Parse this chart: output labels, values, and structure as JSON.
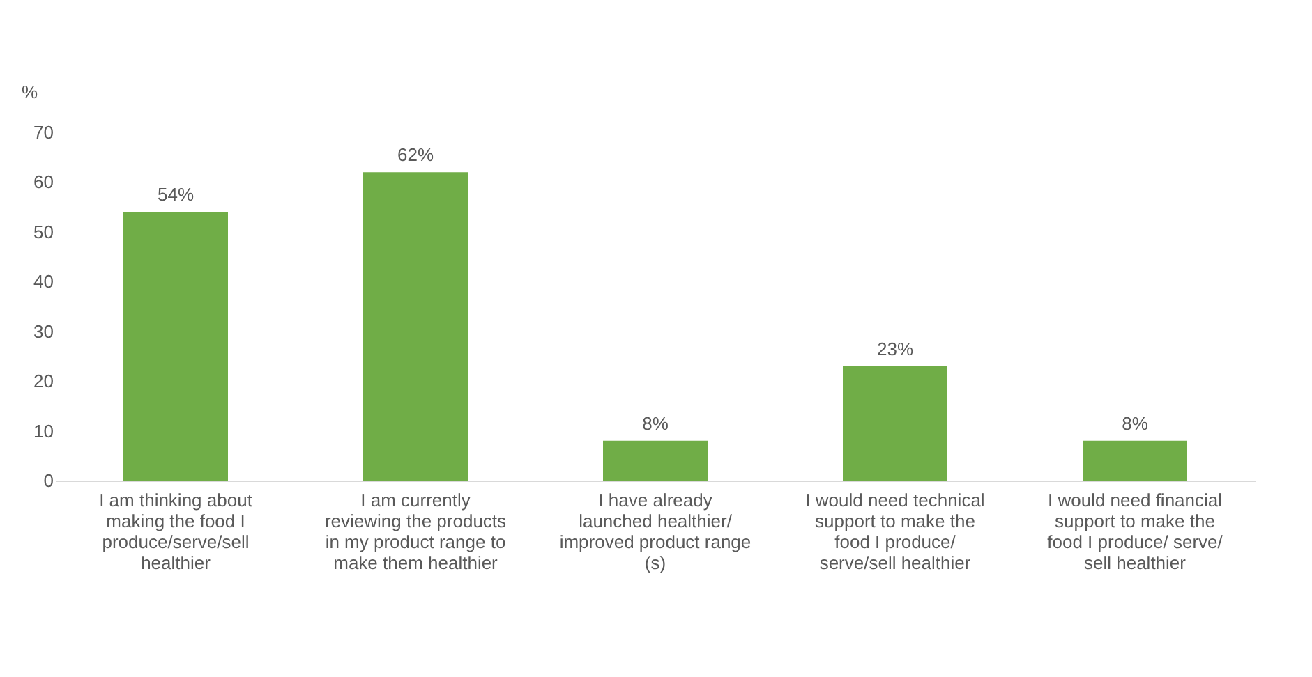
{
  "chart_data": {
    "type": "bar",
    "ylabel": "%",
    "categories": [
      "I am thinking about making the food I produce/serve/sell healthier",
      "I am currently reviewing the products in my product range to make them healthier",
      "I have already launched healthier/ improved product range (s)",
      "I would need technical support to make the food I produce/ serve/sell healthier",
      "I would need financial support to make the food I produce/ serve/ sell healthier"
    ],
    "values": [
      54,
      62,
      8,
      23,
      8
    ],
    "value_labels": [
      "54%",
      "62%",
      "8%",
      "23%",
      "8%"
    ],
    "color": "#70ad47",
    "ylim": [
      0,
      70
    ],
    "yticks": [
      0,
      10,
      20,
      30,
      40,
      50,
      60,
      70
    ],
    "grid": false
  }
}
